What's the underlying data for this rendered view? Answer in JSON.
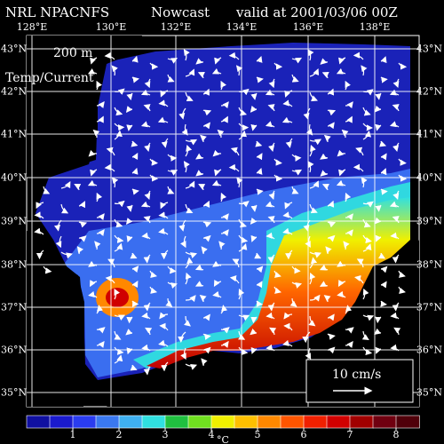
{
  "header": {
    "model": "NRL NPACNFS",
    "product": "Nowcast",
    "valid": "valid at 2001/03/06 00Z"
  },
  "map": {
    "depth": "200 m",
    "field": "Temp/Current",
    "lon_labels": [
      "128°E",
      "130°E",
      "132°E",
      "134°E",
      "136°E",
      "138°E"
    ],
    "lat_labels": [
      "43°N",
      "42°N",
      "41°N",
      "40°N",
      "39°N",
      "38°N",
      "37°N",
      "36°N",
      "35°N"
    ],
    "land_color": "#000000",
    "grid_color": "#ffffff",
    "current_arrow_color": "#ffffff"
  },
  "legend": {
    "vector_scale_label": "10 cm/s"
  },
  "colorbar": {
    "unit": "°C",
    "ticks": [
      "1",
      "2",
      "3",
      "4",
      "5",
      "6",
      "7",
      "8"
    ],
    "range": [
      0,
      8.5
    ],
    "colors": [
      "#1010a0",
      "#1a1acd",
      "#2a3cf0",
      "#3a78f0",
      "#3fb0f0",
      "#30e0e0",
      "#20c040",
      "#70e020",
      "#f0f000",
      "#ffc000",
      "#ff8800",
      "#ff5500",
      "#f02000",
      "#d00000",
      "#a00000",
      "#700010",
      "#50000a"
    ]
  }
}
